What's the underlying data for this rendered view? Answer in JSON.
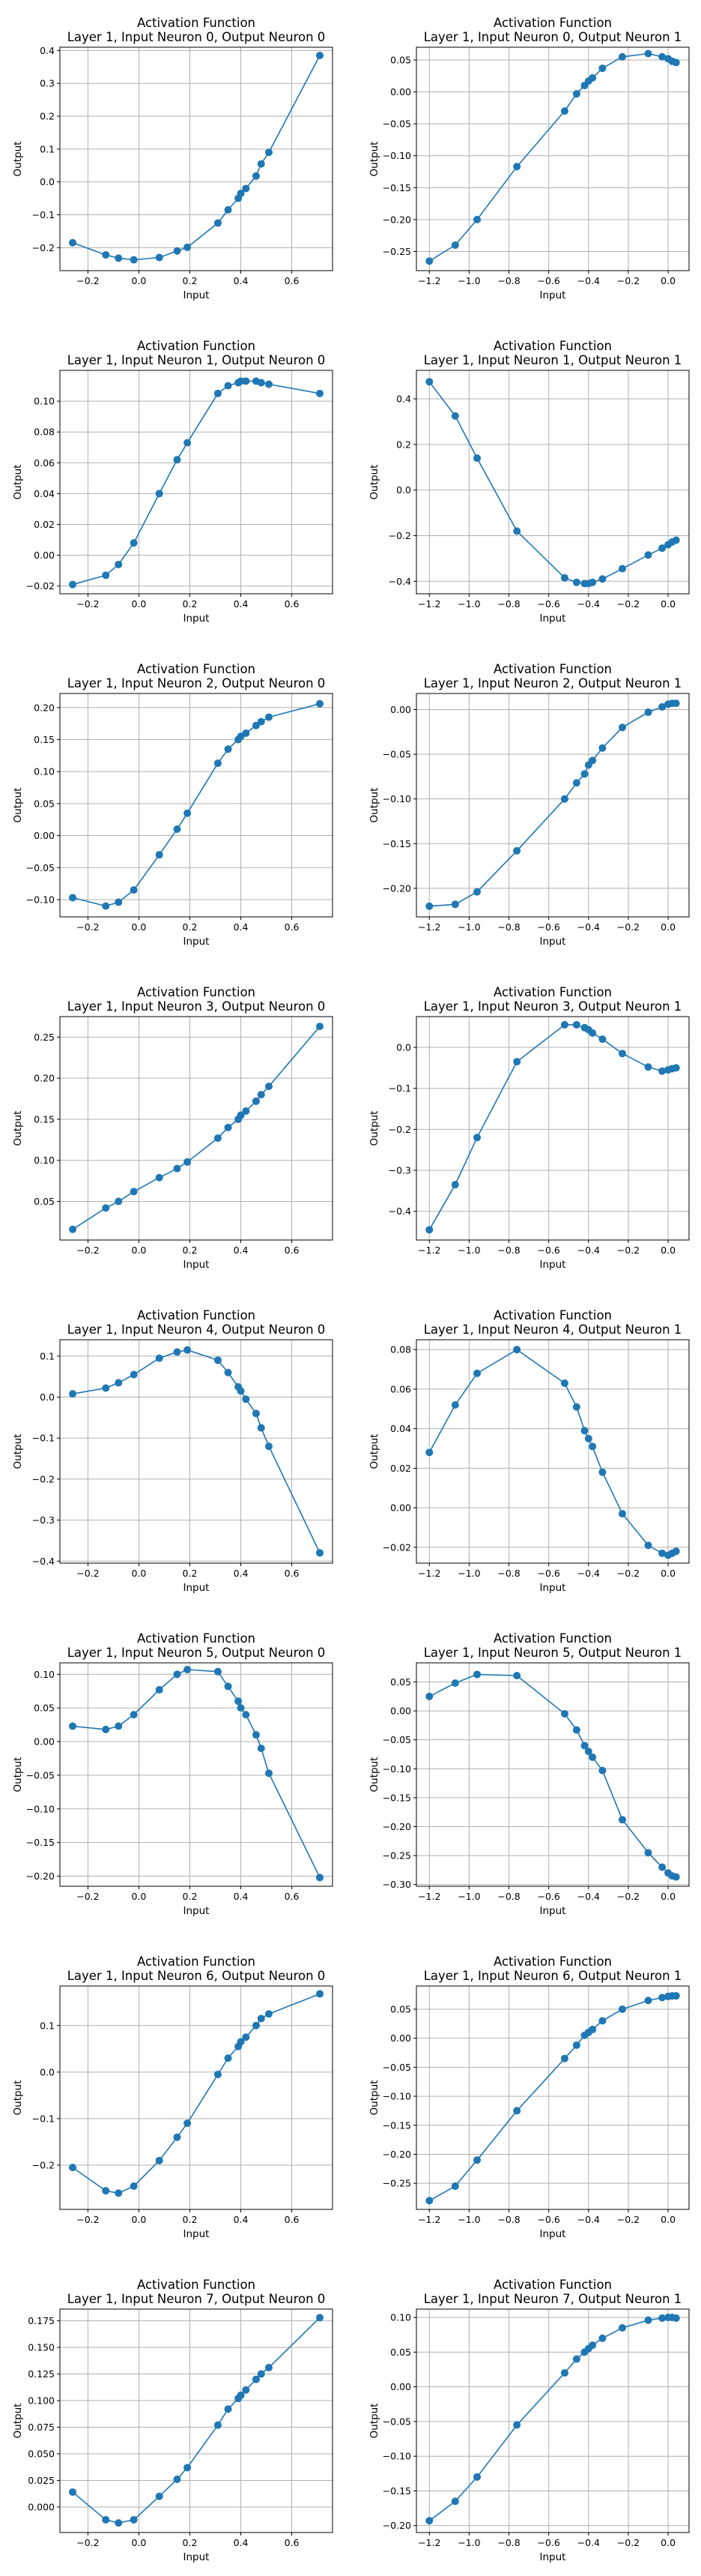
{
  "colors": {
    "series": "#1f77b4",
    "grid": "#b0b0b0"
  },
  "chart_data": [
    {
      "type": "line",
      "title_line1": "Activation Function",
      "title_line2": "Layer 1, Input Neuron 0, Output Neuron 0",
      "xlabel": "Input",
      "ylabel": "Output",
      "grid": true,
      "xlim": [
        -0.31,
        0.76
      ],
      "ylim": [
        -0.27,
        0.41
      ],
      "xticks": [
        -0.2,
        0.0,
        0.2,
        0.4,
        0.6
      ],
      "yticks": [
        -0.2,
        -0.1,
        0.0,
        0.1,
        0.2,
        0.3,
        0.4
      ],
      "tick_decimals": 1,
      "x": [
        -0.26,
        -0.13,
        -0.08,
        -0.02,
        0.08,
        0.15,
        0.19,
        0.31,
        0.35,
        0.39,
        0.4,
        0.42,
        0.46,
        0.48,
        0.51,
        0.71
      ],
      "y": [
        -0.185,
        -0.222,
        -0.232,
        -0.237,
        -0.23,
        -0.21,
        -0.199,
        -0.125,
        -0.085,
        -0.05,
        -0.035,
        -0.02,
        0.018,
        0.055,
        0.09,
        0.385
      ]
    },
    {
      "type": "line",
      "title_line1": "Activation Function",
      "title_line2": "Layer 1, Input Neuron 0, Output Neuron 1",
      "xlabel": "Input",
      "ylabel": "Output",
      "grid": true,
      "xlim": [
        -1.265,
        0.105
      ],
      "ylim": [
        -0.28,
        0.07
      ],
      "xticks": [
        -1.2,
        -1.0,
        -0.8,
        -0.6,
        -0.4,
        -0.2,
        0.0
      ],
      "yticks": [
        -0.25,
        -0.2,
        -0.15,
        -0.1,
        -0.05,
        0.0,
        0.05
      ],
      "tick_decimals": 2,
      "x": [
        -1.2,
        -1.07,
        -0.96,
        -0.76,
        -0.52,
        -0.46,
        -0.42,
        -0.4,
        -0.38,
        -0.33,
        -0.23,
        -0.1,
        -0.03,
        0.0,
        0.02,
        0.04
      ],
      "y": [
        -0.265,
        -0.24,
        -0.2,
        -0.117,
        -0.03,
        -0.003,
        0.01,
        0.017,
        0.022,
        0.037,
        0.055,
        0.06,
        0.055,
        0.052,
        0.048,
        0.046
      ]
    },
    {
      "type": "line",
      "title_line1": "Activation Function",
      "title_line2": "Layer 1, Input Neuron 1, Output Neuron 0",
      "xlabel": "Input",
      "ylabel": "Output",
      "grid": true,
      "xlim": [
        -0.31,
        0.76
      ],
      "ylim": [
        -0.025,
        0.12
      ],
      "xticks": [
        -0.2,
        0.0,
        0.2,
        0.4,
        0.6
      ],
      "yticks": [
        -0.02,
        0.0,
        0.02,
        0.04,
        0.06,
        0.08,
        0.1
      ],
      "tick_decimals": 2,
      "x": [
        -0.26,
        -0.13,
        -0.08,
        -0.02,
        0.08,
        0.15,
        0.19,
        0.31,
        0.35,
        0.39,
        0.4,
        0.42,
        0.46,
        0.48,
        0.51,
        0.71
      ],
      "y": [
        -0.019,
        -0.013,
        -0.006,
        0.008,
        0.04,
        0.062,
        0.073,
        0.105,
        0.11,
        0.112,
        0.113,
        0.113,
        0.113,
        0.112,
        0.111,
        0.105
      ]
    },
    {
      "type": "line",
      "title_line1": "Activation Function",
      "title_line2": "Layer 1, Input Neuron 1, Output Neuron 1",
      "xlabel": "Input",
      "ylabel": "Output",
      "grid": true,
      "xlim": [
        -1.265,
        0.105
      ],
      "ylim": [
        -0.455,
        0.525
      ],
      "xticks": [
        -1.2,
        -1.0,
        -0.8,
        -0.6,
        -0.4,
        -0.2,
        0.0
      ],
      "yticks": [
        -0.4,
        -0.2,
        0.0,
        0.2,
        0.4
      ],
      "tick_decimals": 1,
      "x": [
        -1.2,
        -1.07,
        -0.96,
        -0.76,
        -0.52,
        -0.46,
        -0.42,
        -0.4,
        -0.38,
        -0.33,
        -0.23,
        -0.1,
        -0.03,
        0.0,
        0.02,
        0.04
      ],
      "y": [
        0.475,
        0.325,
        0.14,
        -0.18,
        -0.385,
        -0.405,
        -0.41,
        -0.41,
        -0.405,
        -0.39,
        -0.345,
        -0.285,
        -0.255,
        -0.24,
        -0.228,
        -0.22
      ]
    },
    {
      "type": "line",
      "title_line1": "Activation Function",
      "title_line2": "Layer 1, Input Neuron 2, Output Neuron 0",
      "xlabel": "Input",
      "ylabel": "Output",
      "grid": true,
      "xlim": [
        -0.31,
        0.76
      ],
      "ylim": [
        -0.127,
        0.222
      ],
      "xticks": [
        -0.2,
        0.0,
        0.2,
        0.4,
        0.6
      ],
      "yticks": [
        -0.1,
        -0.05,
        0.0,
        0.05,
        0.1,
        0.15,
        0.2
      ],
      "tick_decimals": 2,
      "x": [
        -0.26,
        -0.13,
        -0.08,
        -0.02,
        0.08,
        0.15,
        0.19,
        0.31,
        0.35,
        0.39,
        0.4,
        0.42,
        0.46,
        0.48,
        0.51,
        0.71
      ],
      "y": [
        -0.097,
        -0.11,
        -0.104,
        -0.085,
        -0.03,
        0.01,
        0.035,
        0.113,
        0.135,
        0.15,
        0.155,
        0.16,
        0.172,
        0.178,
        0.185,
        0.206
      ]
    },
    {
      "type": "line",
      "title_line1": "Activation Function",
      "title_line2": "Layer 1, Input Neuron 2, Output Neuron 1",
      "xlabel": "Input",
      "ylabel": "Output",
      "grid": true,
      "xlim": [
        -1.265,
        0.105
      ],
      "ylim": [
        -0.232,
        0.018
      ],
      "xticks": [
        -1.2,
        -1.0,
        -0.8,
        -0.6,
        -0.4,
        -0.2,
        0.0
      ],
      "yticks": [
        -0.2,
        -0.15,
        -0.1,
        -0.05,
        0.0
      ],
      "tick_decimals": 2,
      "x": [
        -1.2,
        -1.07,
        -0.96,
        -0.76,
        -0.52,
        -0.46,
        -0.42,
        -0.4,
        -0.38,
        -0.33,
        -0.23,
        -0.1,
        -0.03,
        0.0,
        0.02,
        0.04
      ],
      "y": [
        -0.22,
        -0.218,
        -0.204,
        -0.158,
        -0.1,
        -0.082,
        -0.072,
        -0.062,
        -0.057,
        -0.043,
        -0.02,
        -0.003,
        0.003,
        0.006,
        0.007,
        0.007
      ]
    },
    {
      "type": "line",
      "title_line1": "Activation Function",
      "title_line2": "Layer 1, Input Neuron 3, Output Neuron 0",
      "xlabel": "Input",
      "ylabel": "Output",
      "grid": true,
      "xlim": [
        -0.31,
        0.76
      ],
      "ylim": [
        0.003,
        0.275
      ],
      "xticks": [
        -0.2,
        0.0,
        0.2,
        0.4,
        0.6
      ],
      "yticks": [
        0.05,
        0.1,
        0.15,
        0.2,
        0.25
      ],
      "tick_decimals": 2,
      "x": [
        -0.26,
        -0.13,
        -0.08,
        -0.02,
        0.08,
        0.15,
        0.19,
        0.31,
        0.35,
        0.39,
        0.4,
        0.42,
        0.46,
        0.48,
        0.51,
        0.71
      ],
      "y": [
        0.016,
        0.042,
        0.05,
        0.062,
        0.079,
        0.09,
        0.098,
        0.127,
        0.14,
        0.15,
        0.155,
        0.16,
        0.172,
        0.18,
        0.19,
        0.263
      ]
    },
    {
      "type": "line",
      "title_line1": "Activation Function",
      "title_line2": "Layer 1, Input Neuron 3, Output Neuron 1",
      "xlabel": "Input",
      "ylabel": "Output",
      "grid": true,
      "xlim": [
        -1.265,
        0.105
      ],
      "ylim": [
        -0.47,
        0.075
      ],
      "xticks": [
        -1.2,
        -1.0,
        -0.8,
        -0.6,
        -0.4,
        -0.2,
        0.0
      ],
      "yticks": [
        -0.4,
        -0.3,
        -0.2,
        -0.1,
        0.0
      ],
      "tick_decimals": 1,
      "x": [
        -1.2,
        -1.07,
        -0.96,
        -0.76,
        -0.52,
        -0.46,
        -0.42,
        -0.4,
        -0.38,
        -0.33,
        -0.23,
        -0.1,
        -0.03,
        0.0,
        0.02,
        0.04
      ],
      "y": [
        -0.445,
        -0.335,
        -0.22,
        -0.035,
        0.055,
        0.055,
        0.048,
        0.043,
        0.035,
        0.02,
        -0.015,
        -0.048,
        -0.058,
        -0.055,
        -0.052,
        -0.05
      ]
    },
    {
      "type": "line",
      "title_line1": "Activation Function",
      "title_line2": "Layer 1, Input Neuron 4, Output Neuron 0",
      "xlabel": "Input",
      "ylabel": "Output",
      "grid": true,
      "xlim": [
        -0.31,
        0.76
      ],
      "ylim": [
        -0.405,
        0.14
      ],
      "xticks": [
        -0.2,
        0.0,
        0.2,
        0.4,
        0.6
      ],
      "yticks": [
        -0.4,
        -0.3,
        -0.2,
        -0.1,
        0.0,
        0.1
      ],
      "tick_decimals": 1,
      "x": [
        -0.26,
        -0.13,
        -0.08,
        -0.02,
        0.08,
        0.15,
        0.19,
        0.31,
        0.35,
        0.39,
        0.4,
        0.42,
        0.46,
        0.48,
        0.51,
        0.71
      ],
      "y": [
        0.008,
        0.022,
        0.035,
        0.055,
        0.095,
        0.11,
        0.115,
        0.09,
        0.06,
        0.025,
        0.015,
        -0.005,
        -0.04,
        -0.075,
        -0.12,
        -0.38
      ]
    },
    {
      "type": "line",
      "title_line1": "Activation Function",
      "title_line2": "Layer 1, Input Neuron 4, Output Neuron 1",
      "xlabel": "Input",
      "ylabel": "Output",
      "grid": true,
      "xlim": [
        -1.265,
        0.105
      ],
      "ylim": [
        -0.028,
        0.085
      ],
      "xticks": [
        -1.2,
        -1.0,
        -0.8,
        -0.6,
        -0.4,
        -0.2,
        0.0
      ],
      "yticks": [
        -0.02,
        0.0,
        0.02,
        0.04,
        0.06,
        0.08
      ],
      "tick_decimals": 2,
      "x": [
        -1.2,
        -1.07,
        -0.96,
        -0.76,
        -0.52,
        -0.46,
        -0.42,
        -0.4,
        -0.38,
        -0.33,
        -0.23,
        -0.1,
        -0.03,
        0.0,
        0.02,
        0.04
      ],
      "y": [
        0.028,
        0.052,
        0.068,
        0.08,
        0.063,
        0.051,
        0.039,
        0.035,
        0.031,
        0.018,
        -0.003,
        -0.019,
        -0.023,
        -0.024,
        -0.023,
        -0.022
      ]
    },
    {
      "type": "line",
      "title_line1": "Activation Function",
      "title_line2": "Layer 1, Input Neuron 5, Output Neuron 0",
      "xlabel": "Input",
      "ylabel": "Output",
      "grid": true,
      "xlim": [
        -0.31,
        0.76
      ],
      "ylim": [
        -0.215,
        0.117
      ],
      "xticks": [
        -0.2,
        0.0,
        0.2,
        0.4,
        0.6
      ],
      "yticks": [
        -0.2,
        -0.15,
        -0.1,
        -0.05,
        0.0,
        0.05,
        0.1
      ],
      "tick_decimals": 2,
      "x": [
        -0.26,
        -0.13,
        -0.08,
        -0.02,
        0.08,
        0.15,
        0.19,
        0.31,
        0.35,
        0.39,
        0.4,
        0.42,
        0.46,
        0.48,
        0.51,
        0.71
      ],
      "y": [
        0.023,
        0.018,
        0.023,
        0.04,
        0.077,
        0.1,
        0.107,
        0.104,
        0.082,
        0.06,
        0.05,
        0.04,
        0.01,
        -0.01,
        -0.047,
        -0.202
      ]
    },
    {
      "type": "line",
      "title_line1": "Activation Function",
      "title_line2": "Layer 1, Input Neuron 5, Output Neuron 1",
      "xlabel": "Input",
      "ylabel": "Output",
      "grid": true,
      "xlim": [
        -1.265,
        0.105
      ],
      "ylim": [
        -0.303,
        0.083
      ],
      "xticks": [
        -1.2,
        -1.0,
        -0.8,
        -0.6,
        -0.4,
        -0.2,
        0.0
      ],
      "yticks": [
        -0.3,
        -0.25,
        -0.2,
        -0.15,
        -0.1,
        -0.05,
        0.0,
        0.05
      ],
      "tick_decimals": 2,
      "x": [
        -1.2,
        -1.07,
        -0.96,
        -0.76,
        -0.52,
        -0.46,
        -0.42,
        -0.4,
        -0.38,
        -0.33,
        -0.23,
        -0.1,
        -0.03,
        0.0,
        0.02,
        0.04
      ],
      "y": [
        0.025,
        0.048,
        0.063,
        0.061,
        -0.005,
        -0.033,
        -0.06,
        -0.07,
        -0.08,
        -0.103,
        -0.188,
        -0.245,
        -0.27,
        -0.28,
        -0.285,
        -0.287
      ]
    },
    {
      "type": "line",
      "title_line1": "Activation Function",
      "title_line2": "Layer 1, Input Neuron 6, Output Neuron 0",
      "xlabel": "Input",
      "ylabel": "Output",
      "grid": true,
      "xlim": [
        -0.31,
        0.76
      ],
      "ylim": [
        -0.295,
        0.185
      ],
      "xticks": [
        -0.2,
        0.0,
        0.2,
        0.4,
        0.6
      ],
      "yticks": [
        -0.2,
        -0.1,
        0.0,
        0.1
      ],
      "tick_decimals": 1,
      "x": [
        -0.26,
        -0.13,
        -0.08,
        -0.02,
        0.08,
        0.15,
        0.19,
        0.31,
        0.35,
        0.39,
        0.4,
        0.42,
        0.46,
        0.48,
        0.51,
        0.71
      ],
      "y": [
        -0.205,
        -0.255,
        -0.26,
        -0.245,
        -0.19,
        -0.14,
        -0.11,
        -0.005,
        0.03,
        0.055,
        0.065,
        0.075,
        0.1,
        0.115,
        0.125,
        0.168
      ]
    },
    {
      "type": "line",
      "title_line1": "Activation Function",
      "title_line2": "Layer 1, Input Neuron 6, Output Neuron 1",
      "xlabel": "Input",
      "ylabel": "Output",
      "grid": true,
      "xlim": [
        -1.265,
        0.105
      ],
      "ylim": [
        -0.295,
        0.09
      ],
      "xticks": [
        -1.2,
        -1.0,
        -0.8,
        -0.6,
        -0.4,
        -0.2,
        0.0
      ],
      "yticks": [
        -0.25,
        -0.2,
        -0.15,
        -0.1,
        -0.05,
        0.0,
        0.05
      ],
      "tick_decimals": 2,
      "x": [
        -1.2,
        -1.07,
        -0.96,
        -0.76,
        -0.52,
        -0.46,
        -0.42,
        -0.4,
        -0.38,
        -0.33,
        -0.23,
        -0.1,
        -0.03,
        0.0,
        0.02,
        0.04
      ],
      "y": [
        -0.28,
        -0.255,
        -0.21,
        -0.125,
        -0.035,
        -0.012,
        0.005,
        0.01,
        0.015,
        0.03,
        0.05,
        0.065,
        0.07,
        0.072,
        0.073,
        0.073
      ]
    },
    {
      "type": "line",
      "title_line1": "Activation Function",
      "title_line2": "Layer 1, Input Neuron 7, Output Neuron 0",
      "xlabel": "Input",
      "ylabel": "Output",
      "grid": true,
      "xlim": [
        -0.31,
        0.76
      ],
      "ylim": [
        -0.024,
        0.186
      ],
      "xticks": [
        -0.2,
        0.0,
        0.2,
        0.4,
        0.6
      ],
      "yticks": [
        0.0,
        0.025,
        0.05,
        0.075,
        0.1,
        0.125,
        0.15,
        0.175
      ],
      "tick_decimals": 3,
      "x": [
        -0.26,
        -0.13,
        -0.08,
        -0.02,
        0.08,
        0.15,
        0.19,
        0.31,
        0.35,
        0.39,
        0.4,
        0.42,
        0.46,
        0.48,
        0.51,
        0.71
      ],
      "y": [
        0.014,
        -0.012,
        -0.015,
        -0.012,
        0.01,
        0.026,
        0.037,
        0.077,
        0.092,
        0.102,
        0.105,
        0.11,
        0.12,
        0.125,
        0.131,
        0.178
      ]
    },
    {
      "type": "line",
      "title_line1": "Activation Function",
      "title_line2": "Layer 1, Input Neuron 7, Output Neuron 1",
      "xlabel": "Input",
      "ylabel": "Output",
      "grid": true,
      "xlim": [
        -1.265,
        0.105
      ],
      "ylim": [
        -0.21,
        0.112
      ],
      "xticks": [
        -1.2,
        -1.0,
        -0.8,
        -0.6,
        -0.4,
        -0.2,
        0.0
      ],
      "yticks": [
        -0.2,
        -0.15,
        -0.1,
        -0.05,
        0.0,
        0.05,
        0.1
      ],
      "tick_decimals": 2,
      "x": [
        -1.2,
        -1.07,
        -0.96,
        -0.76,
        -0.52,
        -0.46,
        -0.42,
        -0.4,
        -0.38,
        -0.33,
        -0.23,
        -0.1,
        -0.03,
        0.0,
        0.02,
        0.04
      ],
      "y": [
        -0.193,
        -0.165,
        -0.13,
        -0.055,
        0.02,
        0.04,
        0.05,
        0.055,
        0.06,
        0.07,
        0.085,
        0.096,
        0.099,
        0.1,
        0.1,
        0.099
      ]
    }
  ]
}
